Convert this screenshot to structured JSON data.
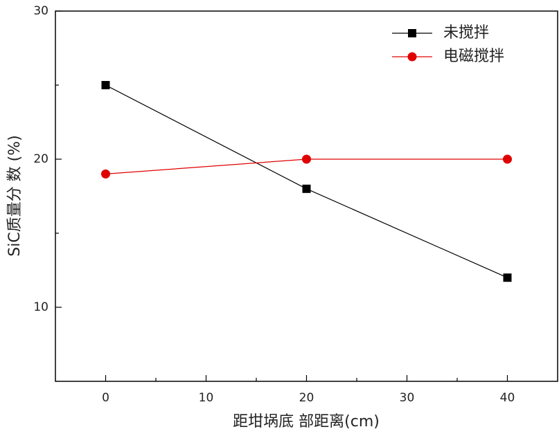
{
  "chart_data": {
    "type": "line",
    "x_label": "距坩埚底 部距离(cm)",
    "y_label": "SiC质量分 数 (%)",
    "x": [
      0,
      20,
      40
    ],
    "series": [
      {
        "name": "未搅拌",
        "color": "#000000",
        "marker": "square",
        "values": [
          25,
          18,
          12
        ]
      },
      {
        "name": "电磁搅拌",
        "color": "#e00000",
        "marker": "circle",
        "values": [
          19,
          20,
          20
        ]
      }
    ],
    "xlim": [
      -5,
      45
    ],
    "xticks": [
      0,
      10,
      20,
      30,
      40
    ],
    "x_minor_ticks": [
      5,
      15,
      25,
      35
    ],
    "ylim": [
      5,
      30
    ],
    "yticks": [
      10,
      20,
      30
    ],
    "y_minor_ticks": [
      15,
      25
    ],
    "legend": "upper-right"
  }
}
